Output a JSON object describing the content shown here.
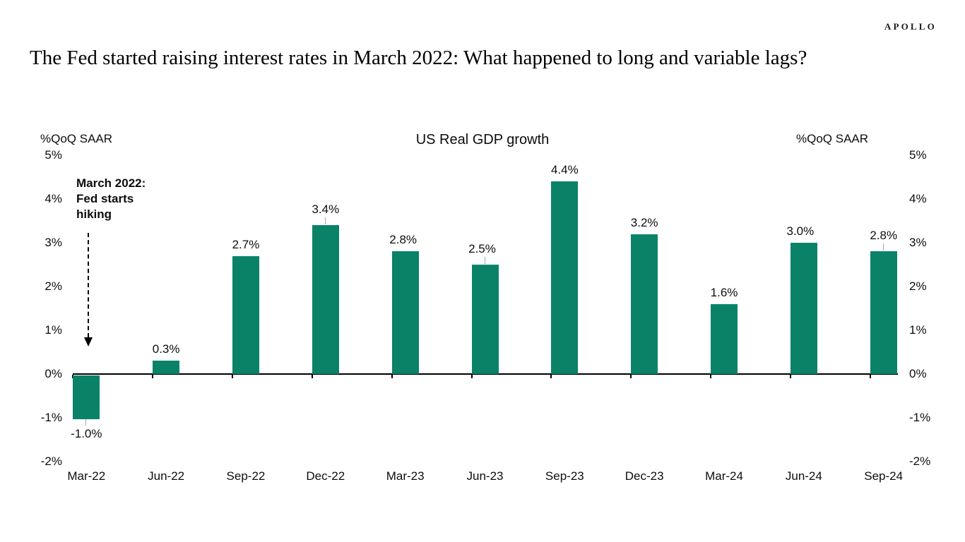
{
  "brand": {
    "logo_text": "APOLLO"
  },
  "header": {
    "title": "The Fed started raising interest rates in March 2022: What happened to long and variable lags?"
  },
  "chart_data": {
    "type": "bar",
    "title": "US Real GDP growth",
    "y_axis_unit_left": "%QoQ SAAR",
    "y_axis_unit_right": "%QoQ SAAR",
    "categories": [
      "Mar-22",
      "Jun-22",
      "Sep-22",
      "Dec-22",
      "Mar-23",
      "Jun-23",
      "Sep-23",
      "Dec-23",
      "Mar-24",
      "Jun-24",
      "Sep-24"
    ],
    "values": [
      -1.0,
      0.3,
      2.7,
      3.4,
      2.8,
      2.5,
      4.4,
      3.2,
      1.6,
      3.0,
      2.8
    ],
    "data_labels": [
      "-1.0%",
      "0.3%",
      "2.7%",
      "3.4%",
      "2.8%",
      "2.5%",
      "4.4%",
      "3.2%",
      "1.6%",
      "3.0%",
      "2.8%"
    ],
    "label_has_leader_line": [
      true,
      false,
      false,
      true,
      false,
      true,
      false,
      false,
      false,
      false,
      true
    ],
    "y_tick_labels": [
      "5%",
      "4%",
      "3%",
      "2%",
      "1%",
      "0%",
      "-1%",
      "-2%"
    ],
    "y_tick_values": [
      5,
      4,
      3,
      2,
      1,
      0,
      -1,
      -2
    ],
    "ylim": [
      -2,
      5
    ],
    "grid": false,
    "legend_position": "none",
    "bar_color": "#098268",
    "leader_line_color": "#a6a6a6",
    "annotation": {
      "text_lines": [
        "March 2022:",
        "Fed starts",
        "hiking"
      ],
      "arrow": "dashed vertical arrow pointing down at Mar-22 bar"
    }
  }
}
